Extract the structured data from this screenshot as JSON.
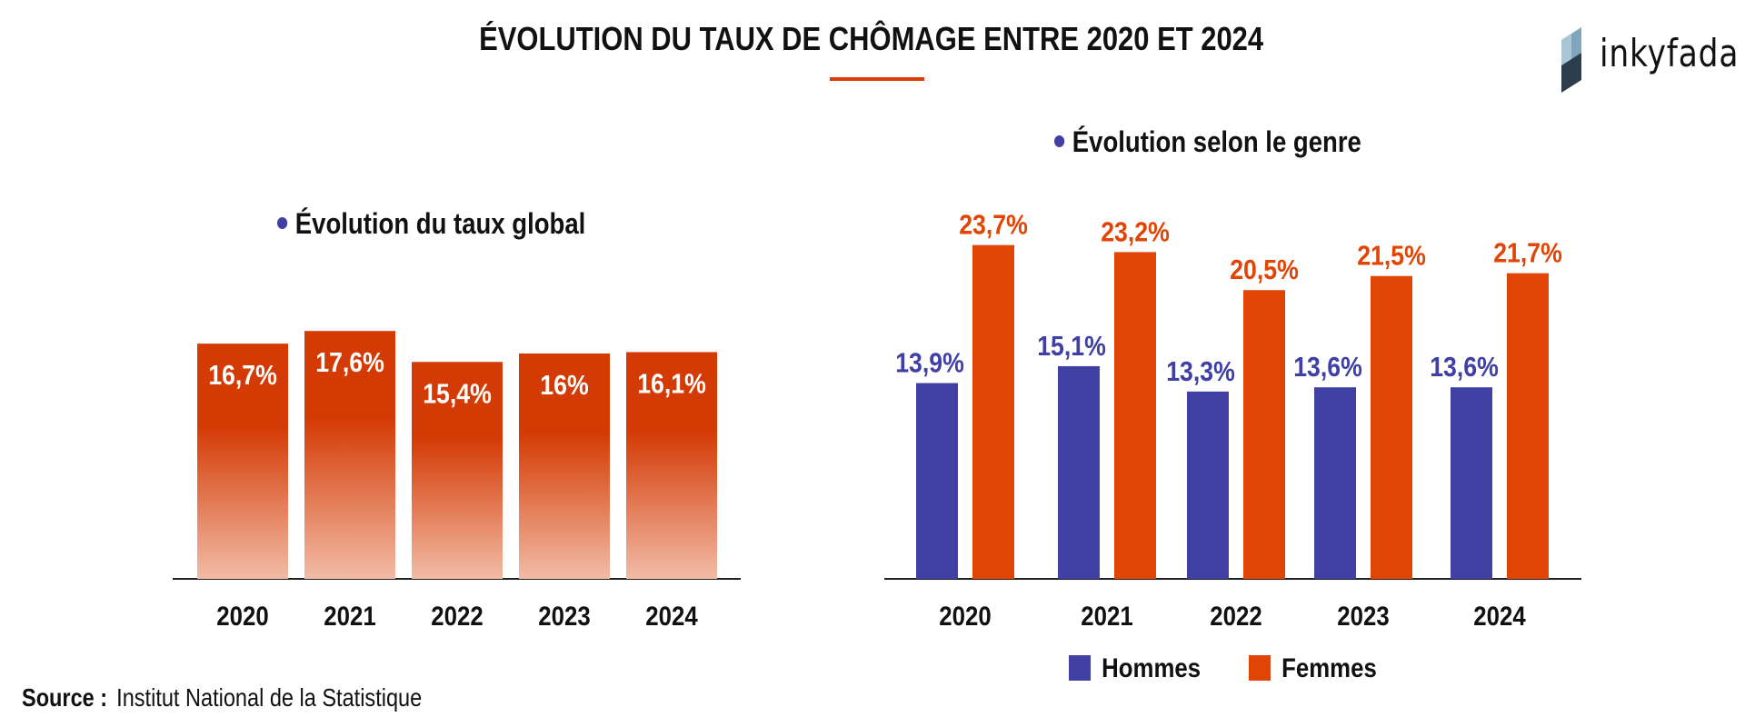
{
  "title": "ÉVOLUTION DU TAUX DE CHÔMAGE ENTRE 2020 ET 2024",
  "logo": {
    "text": "inkyfada"
  },
  "colors": {
    "accent": "#d93d0a",
    "women": "#e04506",
    "men": "#4040a4",
    "bar_top": "#d43a04",
    "bar_bottom": "#f2bba6",
    "text": "#111111"
  },
  "source": {
    "label": "Source :",
    "text": "Institut National de la Statistique"
  },
  "chart_data": [
    {
      "type": "bar",
      "title": "Évolution du taux global",
      "categories": [
        "2020",
        "2021",
        "2022",
        "2023",
        "2024"
      ],
      "values": [
        16.7,
        17.6,
        15.4,
        16,
        16.1
      ],
      "value_labels": [
        "16,7%",
        "17,6%",
        "15,4%",
        "16%",
        "16,1%"
      ],
      "ylim": [
        0,
        24
      ],
      "legend": "none",
      "grid": false
    },
    {
      "type": "bar",
      "title": "Évolution selon le genre",
      "categories": [
        "2020",
        "2021",
        "2022",
        "2023",
        "2024"
      ],
      "series": [
        {
          "name": "Hommes",
          "values": [
            13.9,
            15.1,
            13.3,
            13.6,
            13.6
          ],
          "value_labels": [
            "13,9%",
            "15,1%",
            "13,3%",
            "13,6%",
            "13,6%"
          ]
        },
        {
          "name": "Femmes",
          "values": [
            23.7,
            23.2,
            20.5,
            21.5,
            21.7
          ],
          "value_labels": [
            "23,7%",
            "23,2%",
            "20,5%",
            "21,5%",
            "21,7%"
          ]
        }
      ],
      "ylim": [
        0,
        24
      ],
      "legend": "bottom",
      "grid": false
    }
  ]
}
